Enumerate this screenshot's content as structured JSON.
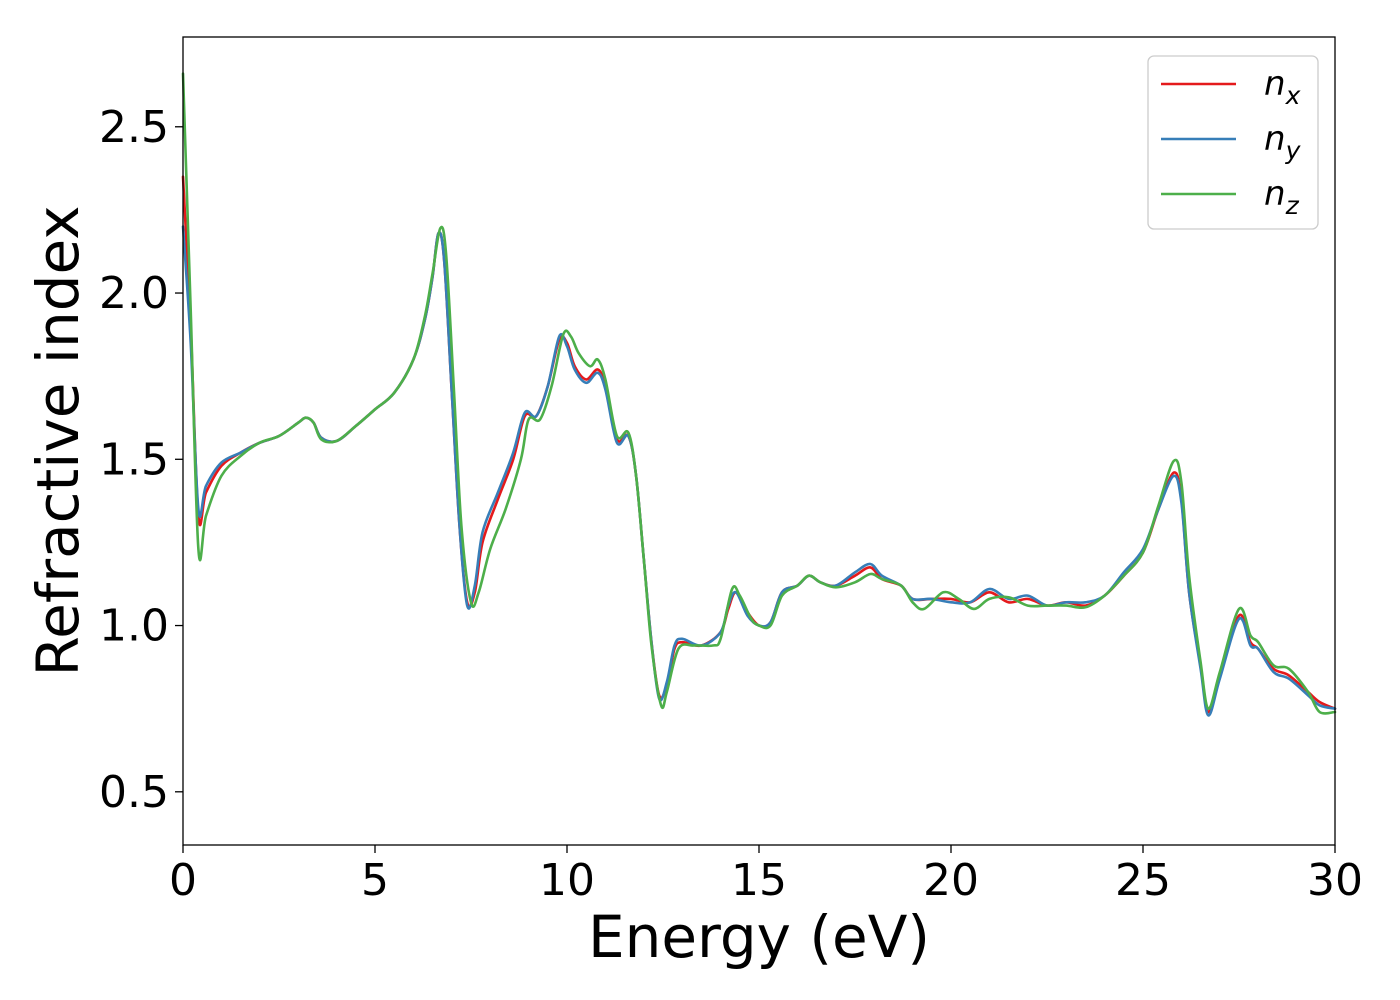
{
  "chart_data": {
    "type": "line",
    "title": "",
    "xlabel": "Energy (eV)",
    "ylabel": "Refractive index",
    "xlim": [
      0,
      30
    ],
    "ylim": [
      0.34,
      2.77
    ],
    "xticks": [
      0,
      5,
      10,
      15,
      20,
      25,
      30
    ],
    "xtick_labels": [
      "0",
      "5",
      "10",
      "15",
      "20",
      "25",
      "30"
    ],
    "yticks": [
      0.5,
      1.0,
      1.5,
      2.0,
      2.5
    ],
    "ytick_labels": [
      "0.5",
      "1.0",
      "1.5",
      "2.0",
      "2.5"
    ],
    "grid": false,
    "legend_position": "top-right",
    "series": [
      {
        "name": "n",
        "subscript": "x",
        "color": "#e41a1c",
        "points": [
          [
            0,
            2.35
          ],
          [
            0.2,
            1.9
          ],
          [
            0.4,
            1.33
          ],
          [
            0.6,
            1.4
          ],
          [
            1.0,
            1.48
          ],
          [
            1.5,
            1.52
          ],
          [
            2.0,
            1.55
          ],
          [
            2.5,
            1.57
          ],
          [
            3.0,
            1.61
          ],
          [
            3.2,
            1.625
          ],
          [
            3.4,
            1.61
          ],
          [
            3.6,
            1.565
          ],
          [
            4.0,
            1.555
          ],
          [
            4.5,
            1.6
          ],
          [
            5.0,
            1.65
          ],
          [
            5.5,
            1.7
          ],
          [
            6.0,
            1.8
          ],
          [
            6.3,
            1.92
          ],
          [
            6.5,
            2.05
          ],
          [
            6.65,
            2.18
          ],
          [
            6.8,
            2.1
          ],
          [
            7.0,
            1.7
          ],
          [
            7.2,
            1.3
          ],
          [
            7.4,
            1.07
          ],
          [
            7.6,
            1.1
          ],
          [
            7.8,
            1.25
          ],
          [
            8.2,
            1.38
          ],
          [
            8.6,
            1.5
          ],
          [
            8.9,
            1.63
          ],
          [
            9.2,
            1.63
          ],
          [
            9.5,
            1.72
          ],
          [
            9.8,
            1.86
          ],
          [
            10.0,
            1.85
          ],
          [
            10.2,
            1.78
          ],
          [
            10.5,
            1.74
          ],
          [
            10.8,
            1.77
          ],
          [
            11.0,
            1.72
          ],
          [
            11.3,
            1.56
          ],
          [
            11.6,
            1.57
          ],
          [
            11.8,
            1.45
          ],
          [
            12.0,
            1.2
          ],
          [
            12.2,
            0.95
          ],
          [
            12.4,
            0.79
          ],
          [
            12.6,
            0.82
          ],
          [
            12.8,
            0.93
          ],
          [
            13.0,
            0.95
          ],
          [
            13.5,
            0.94
          ],
          [
            14.0,
            0.98
          ],
          [
            14.2,
            1.05
          ],
          [
            14.4,
            1.1
          ],
          [
            14.7,
            1.04
          ],
          [
            15.0,
            1.0
          ],
          [
            15.3,
            1.01
          ],
          [
            15.6,
            1.1
          ],
          [
            16.0,
            1.12
          ],
          [
            16.3,
            1.15
          ],
          [
            16.6,
            1.13
          ],
          [
            17.0,
            1.12
          ],
          [
            17.5,
            1.15
          ],
          [
            17.9,
            1.175
          ],
          [
            18.2,
            1.14
          ],
          [
            18.7,
            1.12
          ],
          [
            19.0,
            1.08
          ],
          [
            19.5,
            1.08
          ],
          [
            20.0,
            1.08
          ],
          [
            20.5,
            1.07
          ],
          [
            21.0,
            1.1
          ],
          [
            21.5,
            1.07
          ],
          [
            22.0,
            1.08
          ],
          [
            22.5,
            1.06
          ],
          [
            23.0,
            1.07
          ],
          [
            23.5,
            1.06
          ],
          [
            24.0,
            1.09
          ],
          [
            24.5,
            1.15
          ],
          [
            25.0,
            1.22
          ],
          [
            25.4,
            1.35
          ],
          [
            25.8,
            1.46
          ],
          [
            26.0,
            1.38
          ],
          [
            26.2,
            1.1
          ],
          [
            26.5,
            0.88
          ],
          [
            26.7,
            0.74
          ],
          [
            27.0,
            0.85
          ],
          [
            27.5,
            1.03
          ],
          [
            27.8,
            0.95
          ],
          [
            28.0,
            0.93
          ],
          [
            28.4,
            0.87
          ],
          [
            28.8,
            0.85
          ],
          [
            29.3,
            0.8
          ],
          [
            29.6,
            0.77
          ],
          [
            30.0,
            0.75
          ]
        ]
      },
      {
        "name": "n",
        "subscript": "y",
        "color": "#377eb8",
        "points": [
          [
            0,
            2.2
          ],
          [
            0.2,
            1.85
          ],
          [
            0.4,
            1.35
          ],
          [
            0.6,
            1.42
          ],
          [
            1.0,
            1.49
          ],
          [
            1.5,
            1.52
          ],
          [
            2.0,
            1.55
          ],
          [
            2.5,
            1.57
          ],
          [
            3.0,
            1.61
          ],
          [
            3.2,
            1.625
          ],
          [
            3.4,
            1.61
          ],
          [
            3.6,
            1.565
          ],
          [
            4.0,
            1.555
          ],
          [
            4.5,
            1.6
          ],
          [
            5.0,
            1.65
          ],
          [
            5.5,
            1.7
          ],
          [
            6.0,
            1.8
          ],
          [
            6.3,
            1.92
          ],
          [
            6.5,
            2.05
          ],
          [
            6.65,
            2.18
          ],
          [
            6.8,
            2.1
          ],
          [
            7.0,
            1.7
          ],
          [
            7.2,
            1.3
          ],
          [
            7.4,
            1.06
          ],
          [
            7.6,
            1.12
          ],
          [
            7.8,
            1.28
          ],
          [
            8.2,
            1.4
          ],
          [
            8.6,
            1.52
          ],
          [
            8.9,
            1.64
          ],
          [
            9.2,
            1.63
          ],
          [
            9.5,
            1.72
          ],
          [
            9.8,
            1.87
          ],
          [
            10.0,
            1.84
          ],
          [
            10.2,
            1.77
          ],
          [
            10.5,
            1.73
          ],
          [
            10.8,
            1.76
          ],
          [
            11.0,
            1.71
          ],
          [
            11.3,
            1.55
          ],
          [
            11.6,
            1.57
          ],
          [
            11.8,
            1.45
          ],
          [
            12.0,
            1.2
          ],
          [
            12.2,
            0.95
          ],
          [
            12.4,
            0.78
          ],
          [
            12.6,
            0.83
          ],
          [
            12.8,
            0.94
          ],
          [
            13.0,
            0.96
          ],
          [
            13.5,
            0.94
          ],
          [
            14.0,
            0.98
          ],
          [
            14.2,
            1.06
          ],
          [
            14.4,
            1.1
          ],
          [
            14.7,
            1.03
          ],
          [
            15.0,
            1.0
          ],
          [
            15.3,
            1.01
          ],
          [
            15.6,
            1.1
          ],
          [
            16.0,
            1.12
          ],
          [
            16.3,
            1.15
          ],
          [
            16.6,
            1.13
          ],
          [
            17.0,
            1.12
          ],
          [
            17.5,
            1.16
          ],
          [
            17.9,
            1.185
          ],
          [
            18.2,
            1.15
          ],
          [
            18.7,
            1.12
          ],
          [
            19.0,
            1.08
          ],
          [
            19.5,
            1.08
          ],
          [
            20.0,
            1.07
          ],
          [
            20.5,
            1.07
          ],
          [
            21.0,
            1.11
          ],
          [
            21.5,
            1.08
          ],
          [
            22.0,
            1.09
          ],
          [
            22.5,
            1.06
          ],
          [
            23.0,
            1.07
          ],
          [
            23.5,
            1.07
          ],
          [
            24.0,
            1.09
          ],
          [
            24.5,
            1.16
          ],
          [
            25.0,
            1.23
          ],
          [
            25.4,
            1.35
          ],
          [
            25.8,
            1.45
          ],
          [
            26.0,
            1.37
          ],
          [
            26.2,
            1.1
          ],
          [
            26.5,
            0.87
          ],
          [
            26.7,
            0.73
          ],
          [
            27.0,
            0.84
          ],
          [
            27.5,
            1.02
          ],
          [
            27.8,
            0.94
          ],
          [
            28.0,
            0.93
          ],
          [
            28.4,
            0.86
          ],
          [
            28.8,
            0.84
          ],
          [
            29.3,
            0.79
          ],
          [
            29.6,
            0.76
          ],
          [
            30.0,
            0.75
          ]
        ]
      },
      {
        "name": "n",
        "subscript": "z",
        "color": "#4daf4a",
        "points": [
          [
            0,
            2.66
          ],
          [
            0.2,
            1.95
          ],
          [
            0.4,
            1.23
          ],
          [
            0.6,
            1.33
          ],
          [
            1.0,
            1.45
          ],
          [
            1.5,
            1.51
          ],
          [
            2.0,
            1.55
          ],
          [
            2.5,
            1.57
          ],
          [
            3.0,
            1.61
          ],
          [
            3.2,
            1.625
          ],
          [
            3.4,
            1.61
          ],
          [
            3.6,
            1.56
          ],
          [
            4.0,
            1.555
          ],
          [
            4.5,
            1.6
          ],
          [
            5.0,
            1.65
          ],
          [
            5.5,
            1.7
          ],
          [
            6.0,
            1.8
          ],
          [
            6.3,
            1.93
          ],
          [
            6.5,
            2.06
          ],
          [
            6.7,
            2.195
          ],
          [
            6.85,
            2.12
          ],
          [
            7.05,
            1.72
          ],
          [
            7.25,
            1.3
          ],
          [
            7.5,
            1.07
          ],
          [
            7.7,
            1.1
          ],
          [
            8.0,
            1.23
          ],
          [
            8.4,
            1.35
          ],
          [
            8.8,
            1.5
          ],
          [
            9.0,
            1.62
          ],
          [
            9.3,
            1.62
          ],
          [
            9.6,
            1.72
          ],
          [
            9.9,
            1.875
          ],
          [
            10.1,
            1.87
          ],
          [
            10.3,
            1.82
          ],
          [
            10.6,
            1.78
          ],
          [
            10.8,
            1.8
          ],
          [
            11.0,
            1.74
          ],
          [
            11.3,
            1.57
          ],
          [
            11.6,
            1.58
          ],
          [
            11.8,
            1.45
          ],
          [
            12.0,
            1.2
          ],
          [
            12.2,
            0.94
          ],
          [
            12.45,
            0.76
          ],
          [
            12.6,
            0.8
          ],
          [
            12.9,
            0.93
          ],
          [
            13.3,
            0.94
          ],
          [
            13.8,
            0.94
          ],
          [
            14.0,
            0.96
          ],
          [
            14.3,
            1.11
          ],
          [
            14.5,
            1.09
          ],
          [
            14.8,
            1.02
          ],
          [
            15.0,
            1.0
          ],
          [
            15.3,
            1.0
          ],
          [
            15.6,
            1.09
          ],
          [
            16.0,
            1.12
          ],
          [
            16.3,
            1.15
          ],
          [
            16.6,
            1.13
          ],
          [
            17.0,
            1.115
          ],
          [
            17.5,
            1.13
          ],
          [
            17.9,
            1.155
          ],
          [
            18.2,
            1.14
          ],
          [
            18.7,
            1.12
          ],
          [
            19.0,
            1.07
          ],
          [
            19.3,
            1.05
          ],
          [
            19.8,
            1.1
          ],
          [
            20.2,
            1.08
          ],
          [
            20.6,
            1.05
          ],
          [
            21.0,
            1.08
          ],
          [
            21.5,
            1.085
          ],
          [
            22.0,
            1.06
          ],
          [
            22.5,
            1.06
          ],
          [
            23.0,
            1.06
          ],
          [
            23.5,
            1.055
          ],
          [
            24.0,
            1.09
          ],
          [
            24.5,
            1.15
          ],
          [
            25.0,
            1.22
          ],
          [
            25.4,
            1.36
          ],
          [
            25.8,
            1.495
          ],
          [
            26.0,
            1.43
          ],
          [
            26.2,
            1.15
          ],
          [
            26.5,
            0.89
          ],
          [
            26.7,
            0.75
          ],
          [
            27.0,
            0.86
          ],
          [
            27.5,
            1.05
          ],
          [
            27.8,
            0.97
          ],
          [
            28.0,
            0.95
          ],
          [
            28.4,
            0.88
          ],
          [
            28.8,
            0.87
          ],
          [
            29.3,
            0.8
          ],
          [
            29.6,
            0.74
          ],
          [
            30.0,
            0.74
          ]
        ]
      }
    ]
  }
}
